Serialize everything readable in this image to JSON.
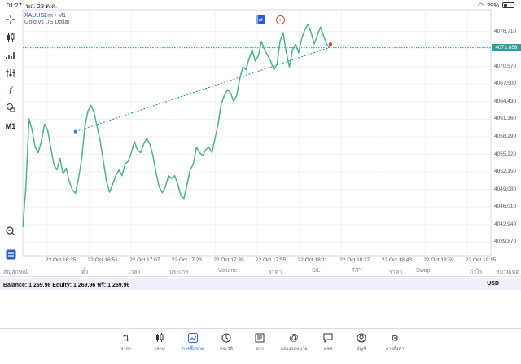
{
  "status": {
    "time": "01:27",
    "date": "พฤ. 23 ต.ค.",
    "battery": "29%"
  },
  "symbol": {
    "name": "XAUUSDm",
    "timeframe_suffix": " • M1",
    "description": "Gold vs US Dollar"
  },
  "toolbar": {
    "timeframe": "M1"
  },
  "price_axis": {
    "labels": [
      "4076.710",
      "4070.570",
      "4067.500",
      "4064.430",
      "4061.360",
      "4058.290",
      "4055.220",
      "4052.150",
      "4049.080",
      "4046.010",
      "4042.940",
      "4039.870"
    ],
    "current_price": "4073.858"
  },
  "time_axis": [
    "22 Oct 16:35",
    "22 Oct 16:51",
    "22 Oct 17:07",
    "22 Oct 17:23",
    "22 Oct 17:39",
    "22 Oct 17:55",
    "22 Oct 18:11",
    "22 Oct 18:27",
    "22 Oct 18:43",
    "22 Oct 18:59",
    "22 Oct 19:15"
  ],
  "columns": [
    "สัญลักษณ์",
    "ตั๋ว",
    "เวลา",
    "ประเภท",
    "Volume",
    "ราคา",
    "S/L",
    "T/P",
    "ราคา",
    "Swap",
    "กำไร",
    "หมายเหตุ"
  ],
  "balance": {
    "text": "Balance: 1 269.96 Equity: 1 269.96 ฟรี: 1 269.96",
    "currency": "USD"
  },
  "tabs": [
    {
      "label": "ราคา"
    },
    {
      "label": "กราฟ"
    },
    {
      "label": "การซื้อขาย"
    },
    {
      "label": "ประวัติ"
    },
    {
      "label": "ข่าว"
    },
    {
      "label": "กล่องจดหมาย"
    },
    {
      "label": "แชท"
    },
    {
      "label": "บัญชี"
    },
    {
      "label": "การตั้งค่า"
    }
  ],
  "colors": {
    "line": "#4fb38a",
    "accent": "#2c6be0",
    "current_price_bg": "#2e9e99",
    "trend_line": "#2c7fc9",
    "end_marker": "#e53935"
  },
  "chart_data": {
    "type": "line",
    "series": [
      {
        "values": [
          4042.5,
          4049.5,
          4061.4,
          4059.5,
          4056.5,
          4055.5,
          4057.5,
          4060.5,
          4059.5,
          4056.5,
          4053.5,
          4052.5,
          4054.5,
          4051.8,
          4052.8,
          4050.5,
          4049.0,
          4048.4,
          4051.0,
          4054.5,
          4060.0,
          4062.8,
          4063.8,
          4062.5,
          4060.0,
          4057.5,
          4054.0,
          4050.5,
          4048.6,
          4050.0,
          4051.5,
          4052.5,
          4051.5,
          4053.5,
          4054.0,
          4055.5,
          4057.5,
          4056.0,
          4055.5,
          4057.0,
          4058.0,
          4057.0,
          4055.0,
          4052.0,
          4049.5,
          4048.5,
          4049.5,
          4051.5,
          4051.0,
          4051.5,
          4050.0,
          4048.0,
          4047.5,
          4050.0,
          4052.5,
          4053.5,
          4056.5,
          4055.5,
          4055.0,
          4056.0,
          4056.5,
          4055.5,
          4058.0,
          4060.5,
          4064.0,
          4065.5,
          4066.5,
          4066.0,
          4064.5,
          4065.5,
          4068.5,
          4070.5,
          4070.0,
          4072.0,
          4073.5,
          4071.5,
          4072.5,
          4075.0,
          4073.5,
          4072.5,
          4071.5,
          4070.0,
          4071.0,
          4075.0,
          4076.5,
          4073.0,
          4070.5,
          4073.5,
          4074.5,
          4073.0,
          4075.5,
          4077.0,
          4078.0,
          4076.5,
          4074.5,
          4076.0,
          4077.5,
          4076.0,
          4074.5,
          4073.858
        ]
      }
    ],
    "ylim": [
      4037.5,
      4080.5
    ],
    "trend_line": {
      "from": [
        17,
        4059.2
      ],
      "to": [
        99,
        4073.9
      ]
    },
    "grid": true
  }
}
